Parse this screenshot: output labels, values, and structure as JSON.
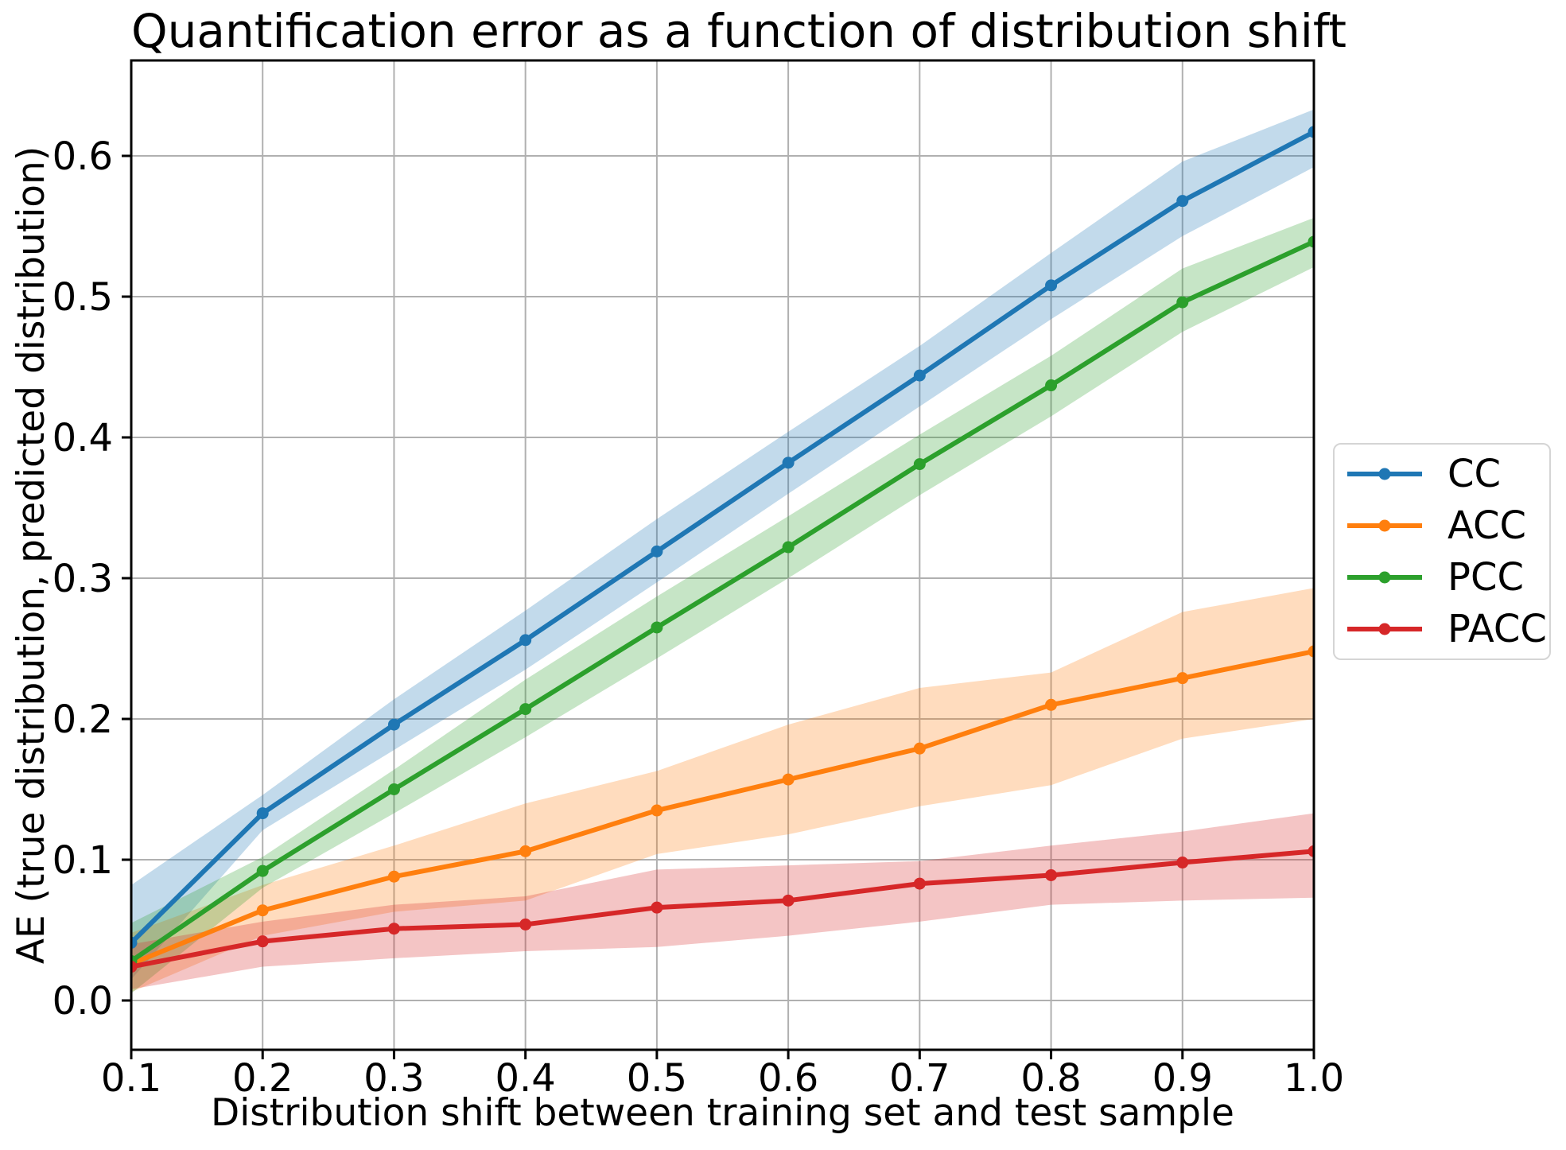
{
  "chart_data": {
    "type": "line",
    "title": "Quantification error as a function of distribution shift",
    "xlabel": "Distribution shift between training set and test sample",
    "ylabel": "AE (true distribution, predicted distribution)",
    "x": [
      0.1,
      0.2,
      0.3,
      0.4,
      0.5,
      0.6,
      0.7,
      0.8,
      0.9,
      1.0
    ],
    "x_tick_labels": [
      "0.1",
      "0.2",
      "0.3",
      "0.4",
      "0.5",
      "0.6",
      "0.7",
      "0.8",
      "0.9",
      "1.0"
    ],
    "y_ticks": [
      0.0,
      0.1,
      0.2,
      0.3,
      0.4,
      0.5,
      0.6
    ],
    "y_tick_labels": [
      "0.0",
      "0.1",
      "0.2",
      "0.3",
      "0.4",
      "0.5",
      "0.6"
    ],
    "xlim": [
      0.1,
      1.0
    ],
    "ylim": [
      -0.035,
      0.668
    ],
    "grid": true,
    "legend_position": "outside-right",
    "marker": "circle",
    "series": [
      {
        "name": "CC",
        "color": "#1f77b4",
        "values": [
          0.041,
          0.133,
          0.196,
          0.256,
          0.319,
          0.382,
          0.444,
          0.508,
          0.568,
          0.617
        ],
        "band_lower": [
          0.015,
          0.121,
          0.178,
          0.235,
          0.297,
          0.36,
          0.422,
          0.484,
          0.543,
          0.592
        ],
        "band_upper": [
          0.082,
          0.146,
          0.214,
          0.277,
          0.342,
          0.404,
          0.465,
          0.531,
          0.596,
          0.633
        ]
      },
      {
        "name": "ACC",
        "color": "#ff7f0e",
        "values": [
          0.026,
          0.064,
          0.088,
          0.106,
          0.135,
          0.157,
          0.179,
          0.21,
          0.229,
          0.248
        ],
        "band_lower": [
          0.006,
          0.046,
          0.063,
          0.071,
          0.104,
          0.118,
          0.138,
          0.153,
          0.186,
          0.2
        ],
        "band_upper": [
          0.048,
          0.082,
          0.11,
          0.14,
          0.163,
          0.196,
          0.222,
          0.233,
          0.276,
          0.293
        ]
      },
      {
        "name": "PCC",
        "color": "#2ca02c",
        "values": [
          0.028,
          0.092,
          0.15,
          0.207,
          0.265,
          0.322,
          0.381,
          0.437,
          0.496,
          0.539
        ],
        "band_lower": [
          0.005,
          0.08,
          0.133,
          0.187,
          0.243,
          0.3,
          0.359,
          0.415,
          0.475,
          0.521
        ],
        "band_upper": [
          0.055,
          0.102,
          0.164,
          0.228,
          0.287,
          0.344,
          0.402,
          0.458,
          0.52,
          0.556
        ]
      },
      {
        "name": "PACC",
        "color": "#d62728",
        "values": [
          0.024,
          0.042,
          0.051,
          0.054,
          0.066,
          0.071,
          0.083,
          0.089,
          0.098,
          0.106
        ],
        "band_lower": [
          0.008,
          0.024,
          0.03,
          0.035,
          0.038,
          0.046,
          0.056,
          0.068,
          0.071,
          0.073
        ],
        "band_upper": [
          0.04,
          0.056,
          0.068,
          0.074,
          0.093,
          0.096,
          0.099,
          0.11,
          0.12,
          0.133
        ]
      }
    ],
    "style": {
      "grid_color": "#b0b0b0",
      "spine_color": "#000000",
      "band_opacity": 0.27,
      "background": "#ffffff"
    }
  }
}
